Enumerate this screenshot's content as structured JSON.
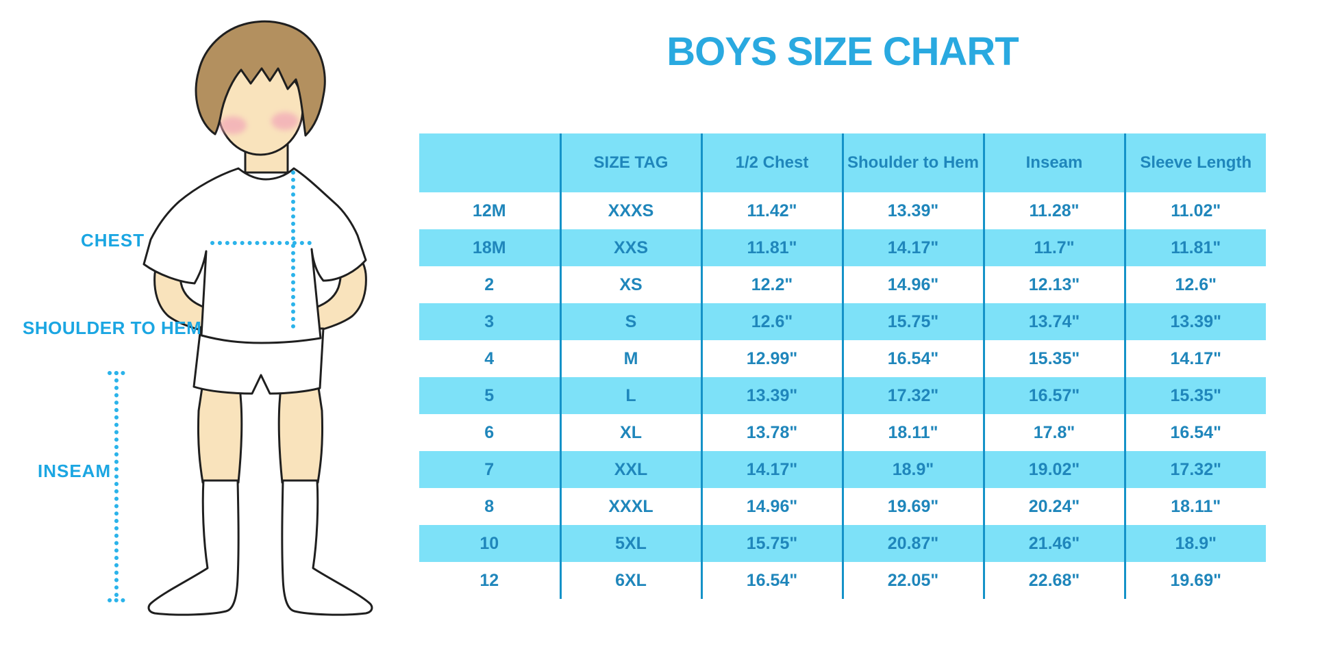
{
  "title": "BOYS SIZE CHART",
  "figure_labels": {
    "chest": "CHEST",
    "shoulder_to_hem": "SHOULDER TO HEM",
    "inseam": "INSEAM"
  },
  "colors": {
    "title_blue": "#29a9e0",
    "label_blue": "#1ba6e2",
    "table_header_bg": "#7de1f8",
    "table_alt_row_bg": "#7de1f8",
    "table_text": "#1f86bb",
    "table_line": "#1492c8",
    "dot_blue": "#2bb3ea",
    "skin": "#f9e3bc",
    "hair": "#b3905f",
    "outline": "#1f1f1f",
    "cheek": "#f2a9b8"
  },
  "chart_data": {
    "type": "table",
    "title": "BOYS SIZE CHART",
    "columns": [
      "",
      "SIZE TAG",
      "1/2 Chest",
      "Shoulder to Hem",
      "Inseam",
      "Sleeve Length"
    ],
    "rows": [
      [
        "12M",
        "XXXS",
        "11.42\"",
        "13.39\"",
        "11.28\"",
        "11.02\""
      ],
      [
        "18M",
        "XXS",
        "11.81\"",
        "14.17\"",
        "11.7\"",
        "11.81\""
      ],
      [
        "2",
        "XS",
        "12.2\"",
        "14.96\"",
        "12.13\"",
        "12.6\""
      ],
      [
        "3",
        "S",
        "12.6\"",
        "15.75\"",
        "13.74\"",
        "13.39\""
      ],
      [
        "4",
        "M",
        "12.99\"",
        "16.54\"",
        "15.35\"",
        "14.17\""
      ],
      [
        "5",
        "L",
        "13.39\"",
        "17.32\"",
        "16.57\"",
        "15.35\""
      ],
      [
        "6",
        "XL",
        "13.78\"",
        "18.11\"",
        "17.8\"",
        "16.54\""
      ],
      [
        "7",
        "XXL",
        "14.17\"",
        "18.9\"",
        "19.02\"",
        "17.32\""
      ],
      [
        "8",
        "XXXL",
        "14.96\"",
        "19.69\"",
        "20.24\"",
        "18.11\""
      ],
      [
        "10",
        "5XL",
        "15.75\"",
        "20.87\"",
        "21.46\"",
        "18.9\""
      ],
      [
        "12",
        "6XL",
        "16.54\"",
        "22.05\"",
        "22.68\"",
        "19.69\""
      ]
    ],
    "layout": {
      "alternating_rows": true,
      "header_background": "#7de1f8",
      "grid": "vertical-only"
    }
  }
}
